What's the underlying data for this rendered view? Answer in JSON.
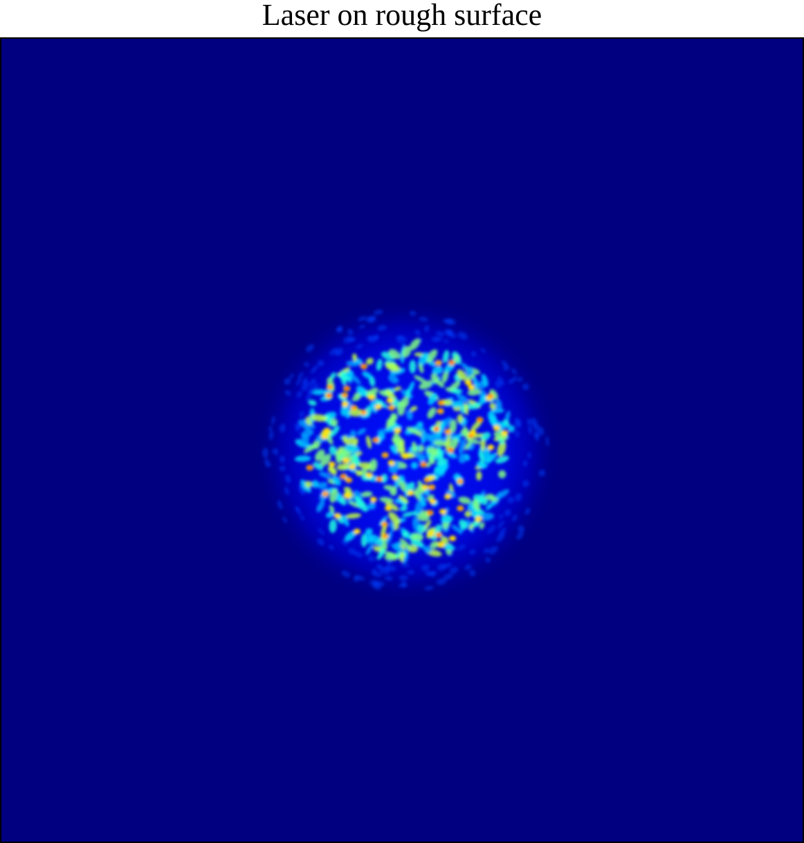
{
  "title": "Laser on rough surface"
}
